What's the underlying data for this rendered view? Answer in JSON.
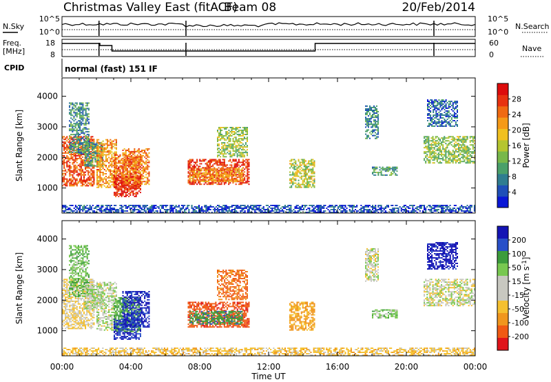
{
  "header": {
    "title": "Christmas Valley East (fitACF)",
    "beam": "Beam 08",
    "date": "20/Feb/2014"
  },
  "colors": {
    "power_scale": [
      "#0a17d6",
      "#1f4fb8",
      "#2f7d90",
      "#4aa06a",
      "#78b84a",
      "#b5c52f",
      "#f0c020",
      "#f59a18",
      "#f06a12",
      "#e83210",
      "#dd0c0c"
    ],
    "velocity_scale": [
      "#e0141a",
      "#f05a14",
      "#f0961e",
      "#f5c030",
      "#c8c8c0",
      "#c8c8c0",
      "#78c850",
      "#3c9c3c",
      "#2850c8",
      "#1414b4"
    ]
  },
  "panels": {
    "nsky": {
      "left_label": "N.Sky",
      "left_ticks": [
        "10^5",
        "10^0"
      ],
      "right_label": "N.Search",
      "right_ticks": [
        "10^5",
        "10^0"
      ]
    },
    "freq": {
      "left_label_1": "Freq.",
      "left_label_2": "[MHz]",
      "left_ticks": [
        "18",
        "8"
      ],
      "right_label": "Nave",
      "right_ticks": [
        "60",
        "0"
      ]
    },
    "cpid": {
      "label": "CPID",
      "text": "normal (fast) 151 IF"
    }
  },
  "chart_data": [
    {
      "type": "heatmap",
      "title": "",
      "xlabel": "Time UT",
      "ylabel": "Slant Range [km]",
      "x_ticks": [
        "00:00",
        "04:00",
        "08:00",
        "12:00",
        "16:00",
        "20:00",
        "00:00"
      ],
      "x_range_hours": [
        0,
        24
      ],
      "ylim": [
        180,
        4600
      ],
      "y_ticks": [
        1000,
        2000,
        3000,
        4000
      ],
      "colorbar_label": "Power [dB]",
      "colorbar_ticks": [
        "4",
        "8",
        "12",
        "16",
        "20",
        "24",
        "28"
      ],
      "colorbar_range": [
        0,
        32
      ]
    },
    {
      "type": "heatmap",
      "title": "",
      "xlabel": "Time UT",
      "ylabel": "Slant Range [km]",
      "x_ticks": [
        "00:00",
        "04:00",
        "08:00",
        "12:00",
        "16:00",
        "20:00",
        "00:00"
      ],
      "x_range_hours": [
        0,
        24
      ],
      "ylim": [
        180,
        4600
      ],
      "y_ticks": [
        1000,
        2000,
        3000,
        4000
      ],
      "colorbar_label": "Velocity [m s^-1]",
      "colorbar_ticks": [
        "200",
        "100",
        "50",
        "15",
        "-15",
        "-50",
        "-100",
        "-200"
      ],
      "colorbar_range": [
        -250,
        250
      ]
    }
  ],
  "clusters": [
    {
      "t0": 0.0,
      "t1": 1.9,
      "r0": 1050,
      "r1": 2700,
      "pw": 26,
      "vel": -15
    },
    {
      "t0": 0.4,
      "t1": 1.6,
      "r0": 2100,
      "r1": 3800,
      "pw": 9,
      "vel": 40
    },
    {
      "t0": 1.3,
      "t1": 2.4,
      "r0": 1700,
      "r1": 2500,
      "pw": 10,
      "vel": 20
    },
    {
      "t0": 2.0,
      "t1": 3.2,
      "r0": 1000,
      "r1": 2600,
      "pw": 22,
      "vel": 10
    },
    {
      "t0": 3.0,
      "t1": 4.6,
      "r0": 950,
      "r1": 2100,
      "pw": 26,
      "vel": 60
    },
    {
      "t0": 3.0,
      "t1": 4.6,
      "r0": 700,
      "r1": 1400,
      "pw": 30,
      "vel": 200
    },
    {
      "t0": 3.5,
      "t1": 5.1,
      "r0": 1100,
      "r1": 2300,
      "pw": 24,
      "vel": 210
    },
    {
      "t0": 7.3,
      "t1": 10.9,
      "r0": 1100,
      "r1": 1950,
      "pw": 28,
      "vel": -180
    },
    {
      "t0": 7.4,
      "t1": 10.5,
      "r0": 1200,
      "r1": 1650,
      "pw": 22,
      "vel": 80
    },
    {
      "t0": 9.0,
      "t1": 10.8,
      "r0": 2000,
      "r1": 3000,
      "pw": 14,
      "vel": -110
    },
    {
      "t0": 13.2,
      "t1": 14.7,
      "r0": 1000,
      "r1": 1950,
      "pw": 16,
      "vel": -60
    },
    {
      "t0": 17.6,
      "t1": 18.4,
      "r0": 2600,
      "r1": 3700,
      "pw": 8,
      "vel": 0
    },
    {
      "t0": 18.0,
      "t1": 19.5,
      "r0": 1400,
      "r1": 1700,
      "pw": 10,
      "vel": 30
    },
    {
      "t0": 21.0,
      "t1": 24.0,
      "r0": 1800,
      "r1": 2700,
      "pw": 14,
      "vel": 0
    },
    {
      "t0": 21.2,
      "t1": 23.0,
      "r0": 3000,
      "r1": 3900,
      "pw": 6,
      "vel": 220
    },
    {
      "t0": 0.0,
      "t1": 24.0,
      "r0": 180,
      "r1": 450,
      "pw": 4,
      "vel": -30
    }
  ]
}
